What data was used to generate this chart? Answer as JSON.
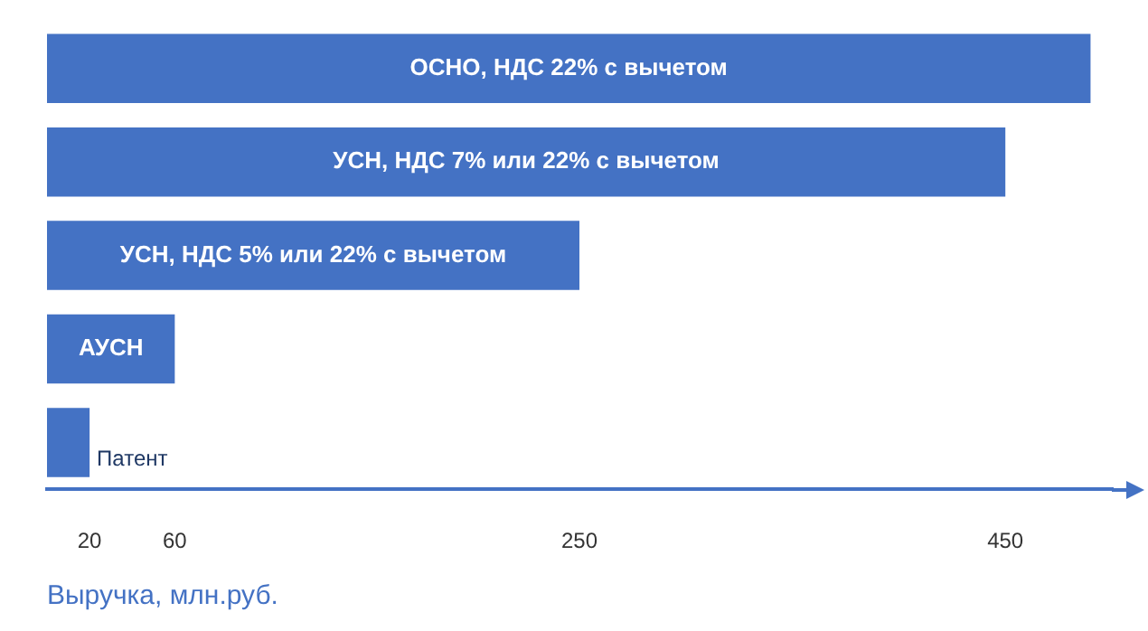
{
  "chart_data": {
    "type": "bar",
    "orientation": "horizontal",
    "categories": [
      "ОСНО, НДС 22% с вычетом",
      "УСН, НДС 7% или 22% с вычетом",
      "УСН, НДС 5% или 22% с вычетом",
      "АУСН",
      "Патент"
    ],
    "values": [
      490,
      450,
      250,
      60,
      20
    ],
    "color": "#4472c4",
    "xlim": [
      0,
      500
    ],
    "xticks": [
      20,
      60,
      250,
      450
    ],
    "xlabel": "Выручка, млн.руб.",
    "grid": false,
    "legend": false,
    "tick_labels": "x"
  }
}
